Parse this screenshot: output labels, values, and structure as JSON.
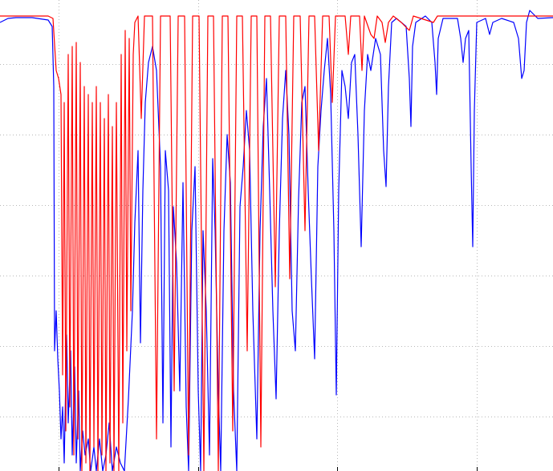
{
  "chart_data": {
    "type": "line",
    "xlim": [
      0,
      689
    ],
    "xticks": [
      73,
      247,
      420,
      594
    ],
    "ylim": [
      0,
      588
    ],
    "yticks": [
      68,
      156,
      244,
      332,
      420,
      508
    ],
    "grid": true,
    "series": [
      {
        "name": null,
        "color": "#0000ff",
        "x": [
          0,
          10,
          20,
          40,
          60,
          65,
          67,
          68,
          70,
          72,
          74,
          76,
          78,
          80,
          83,
          85,
          88,
          90,
          93,
          95,
          98,
          100,
          103,
          106,
          110,
          113,
          117,
          120,
          124,
          128,
          132,
          136,
          140,
          145,
          150,
          155,
          160,
          165,
          168,
          172,
          175,
          178,
          181,
          185,
          190,
          195,
          200,
          203,
          206,
          210,
          213,
          216,
          220,
          224,
          228,
          232,
          235,
          239,
          243,
          247,
          250,
          253,
          257,
          261,
          265,
          268,
          272,
          275,
          279,
          283,
          287,
          291,
          295,
          299,
          303,
          307,
          311,
          315,
          320,
          324,
          328,
          332,
          336,
          340,
          344,
          348,
          352,
          356,
          360,
          364,
          368,
          372,
          376,
          380,
          384,
          388,
          392,
          396,
          400,
          404,
          408,
          412,
          416,
          419,
          422,
          426,
          430,
          434,
          438,
          442,
          446,
          450,
          454,
          458,
          462,
          468,
          474,
          478,
          481,
          484,
          488,
          494,
          500,
          506,
          510,
          512,
          514,
          518,
          530,
          538,
          542,
          544,
          546,
          552,
          570,
          574,
          577,
          580,
          584,
          587,
          589,
          591,
          594,
          605,
          610,
          614,
          625,
          640,
          646,
          650,
          653,
          656,
          660,
          670,
          689
        ],
        "values": [
          560,
          565,
          566,
          566,
          563,
          555,
          480,
          150,
          200,
          140,
          100,
          40,
          80,
          10,
          170,
          60,
          150,
          20,
          130,
          10,
          100,
          0,
          50,
          20,
          40,
          0,
          30,
          0,
          40,
          0,
          20,
          60,
          0,
          30,
          10,
          0,
          90,
          200,
          310,
          400,
          160,
          350,
          460,
          510,
          530,
          500,
          380,
          60,
          400,
          350,
          30,
          330,
          260,
          100,
          360,
          80,
          0,
          300,
          380,
          100,
          0,
          300,
          200,
          20,
          390,
          300,
          100,
          0,
          300,
          420,
          360,
          100,
          0,
          330,
          380,
          450,
          400,
          200,
          40,
          300,
          430,
          490,
          350,
          200,
          90,
          300,
          440,
          500,
          420,
          200,
          150,
          340,
          460,
          480,
          350,
          240,
          140,
          380,
          450,
          500,
          540,
          470,
          300,
          95,
          350,
          500,
          480,
          440,
          510,
          520,
          420,
          280,
          450,
          520,
          500,
          540,
          520,
          400,
          355,
          480,
          560,
          565,
          560,
          555,
          490,
          430,
          530,
          560,
          568,
          560,
          510,
          470,
          540,
          565,
          565,
          540,
          510,
          540,
          550,
          380,
          280,
          450,
          560,
          565,
          545,
          560,
          565,
          560,
          540,
          490,
          500,
          560,
          575,
          565,
          566
        ]
      },
      {
        "name": null,
        "color": "#ff0000",
        "x": [
          0,
          60,
          66,
          70,
          73,
          76,
          78,
          80,
          82,
          85,
          87,
          90,
          92,
          95,
          97,
          100,
          102,
          105,
          107,
          110,
          112,
          115,
          117,
          120,
          122,
          125,
          127,
          130,
          132,
          135,
          137,
          140,
          142,
          145,
          148,
          151,
          153,
          156,
          158,
          161,
          163,
          166,
          168,
          172,
          176,
          180,
          190,
          195,
          200,
          212,
          217,
          222,
          230,
          235,
          240,
          248,
          254,
          259,
          266,
          272,
          277,
          284,
          290,
          295,
          302,
          308,
          313,
          320,
          325,
          330,
          337,
          343,
          348,
          356,
          361,
          366,
          374,
          380,
          385,
          392,
          397,
          402,
          410,
          414,
          418,
          430,
          434,
          437,
          448,
          451,
          454,
          462,
          466,
          470,
          476,
          480,
          484,
          490,
          500,
          510,
          515,
          540,
          545,
          689
        ],
        "values": [
          568,
          568,
          565,
          500,
          490,
          470,
          120,
          460,
          50,
          520,
          80,
          530,
          20,
          535,
          40,
          510,
          0,
          480,
          10,
          470,
          0,
          460,
          30,
          480,
          0,
          460,
          20,
          440,
          0,
          470,
          10,
          430,
          0,
          460,
          0,
          520,
          60,
          550,
          150,
          540,
          200,
          520,
          560,
          568,
          440,
          568,
          568,
          40,
          568,
          568,
          100,
          568,
          568,
          20,
          568,
          568,
          0,
          568,
          568,
          0,
          568,
          568,
          50,
          568,
          568,
          150,
          568,
          568,
          30,
          568,
          568,
          230,
          568,
          568,
          240,
          568,
          568,
          300,
          568,
          568,
          400,
          568,
          568,
          460,
          568,
          568,
          520,
          568,
          568,
          500,
          568,
          545,
          540,
          568,
          560,
          535,
          560,
          568,
          560,
          550,
          568,
          560,
          568,
          568
        ]
      }
    ]
  }
}
